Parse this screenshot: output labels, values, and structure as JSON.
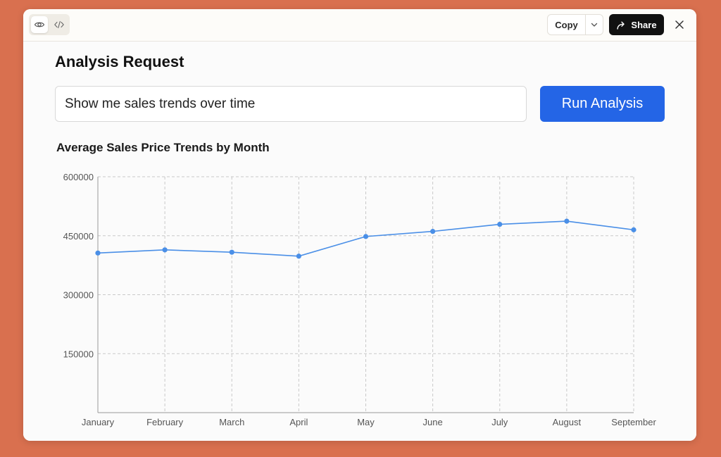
{
  "toolbar": {
    "preview_icon": "eye-icon",
    "code_icon": "code-icon",
    "copy_label": "Copy",
    "copy_dropdown_icon": "chevron-down-icon",
    "share_label": "Share",
    "share_icon": "share-arrow-icon",
    "close_icon": "close-icon"
  },
  "main": {
    "title": "Analysis Request",
    "query_value": "Show me sales trends over time",
    "run_button_label": "Run Analysis"
  },
  "colors": {
    "background": "#d9704f",
    "accent": "#2465e6",
    "series": "#4a8fe7"
  },
  "chart_data": {
    "type": "line",
    "title": "Average Sales Price Trends by Month",
    "categories": [
      "January",
      "February",
      "March",
      "April",
      "May",
      "June",
      "July",
      "August",
      "September"
    ],
    "series": [
      {
        "values": [
          406000,
          414000,
          408000,
          398000,
          448000,
          461000,
          479000,
          487000,
          465000
        ]
      }
    ],
    "yticks": [
      "150000",
      "300000",
      "450000",
      "600000"
    ],
    "ytick_values": [
      150000,
      300000,
      450000,
      600000
    ],
    "ylim": [
      0,
      600000
    ],
    "xlabel": "",
    "ylabel": "",
    "grid": true,
    "legend": "none"
  }
}
